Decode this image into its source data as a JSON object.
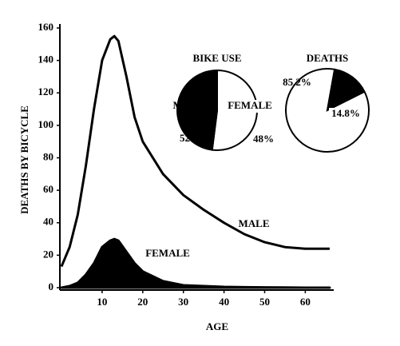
{
  "chart_data": [
    {
      "type": "line",
      "x": [
        0,
        2,
        4,
        6,
        8,
        10,
        12,
        13,
        14,
        16,
        18,
        20,
        25,
        30,
        35,
        40,
        45,
        50,
        55,
        60,
        66
      ],
      "series": [
        {
          "name": "MALE",
          "color": "#000000",
          "values": [
            13,
            25,
            45,
            75,
            110,
            140,
            153,
            155,
            152,
            130,
            105,
            90,
            70,
            57,
            48,
            40,
            33,
            28,
            25,
            24,
            24
          ]
        },
        {
          "name": "FEMALE",
          "color": "#000000",
          "area": true,
          "values": [
            0,
            1,
            3,
            8,
            15,
            25,
            29,
            30,
            29,
            22,
            15,
            10,
            4,
            1.5,
            1,
            0.5,
            0.3,
            0.2,
            0.1,
            0,
            0
          ]
        }
      ],
      "xlabel": "AGE",
      "ylabel": "DEATHS BY BICYCLE",
      "xlim": [
        0,
        67
      ],
      "xticks": [
        10,
        20,
        30,
        40,
        50,
        60
      ],
      "ylim": [
        0,
        160
      ],
      "yticks": [
        0,
        20,
        40,
        60,
        80,
        100,
        120,
        140,
        160
      ]
    },
    {
      "type": "pie",
      "title": "BIKE USE",
      "categories": [
        "MALE",
        "FEMALE"
      ],
      "values": [
        52,
        48
      ],
      "value_labels": [
        "52%",
        "48%"
      ],
      "colors": [
        "#ffffff",
        "#000000"
      ]
    },
    {
      "type": "pie",
      "title": "DEATHS",
      "values": [
        85.2,
        14.8
      ],
      "value_labels": [
        "85.2%",
        "14.8%"
      ],
      "colors": [
        "#ffffff",
        "#000000"
      ]
    }
  ]
}
